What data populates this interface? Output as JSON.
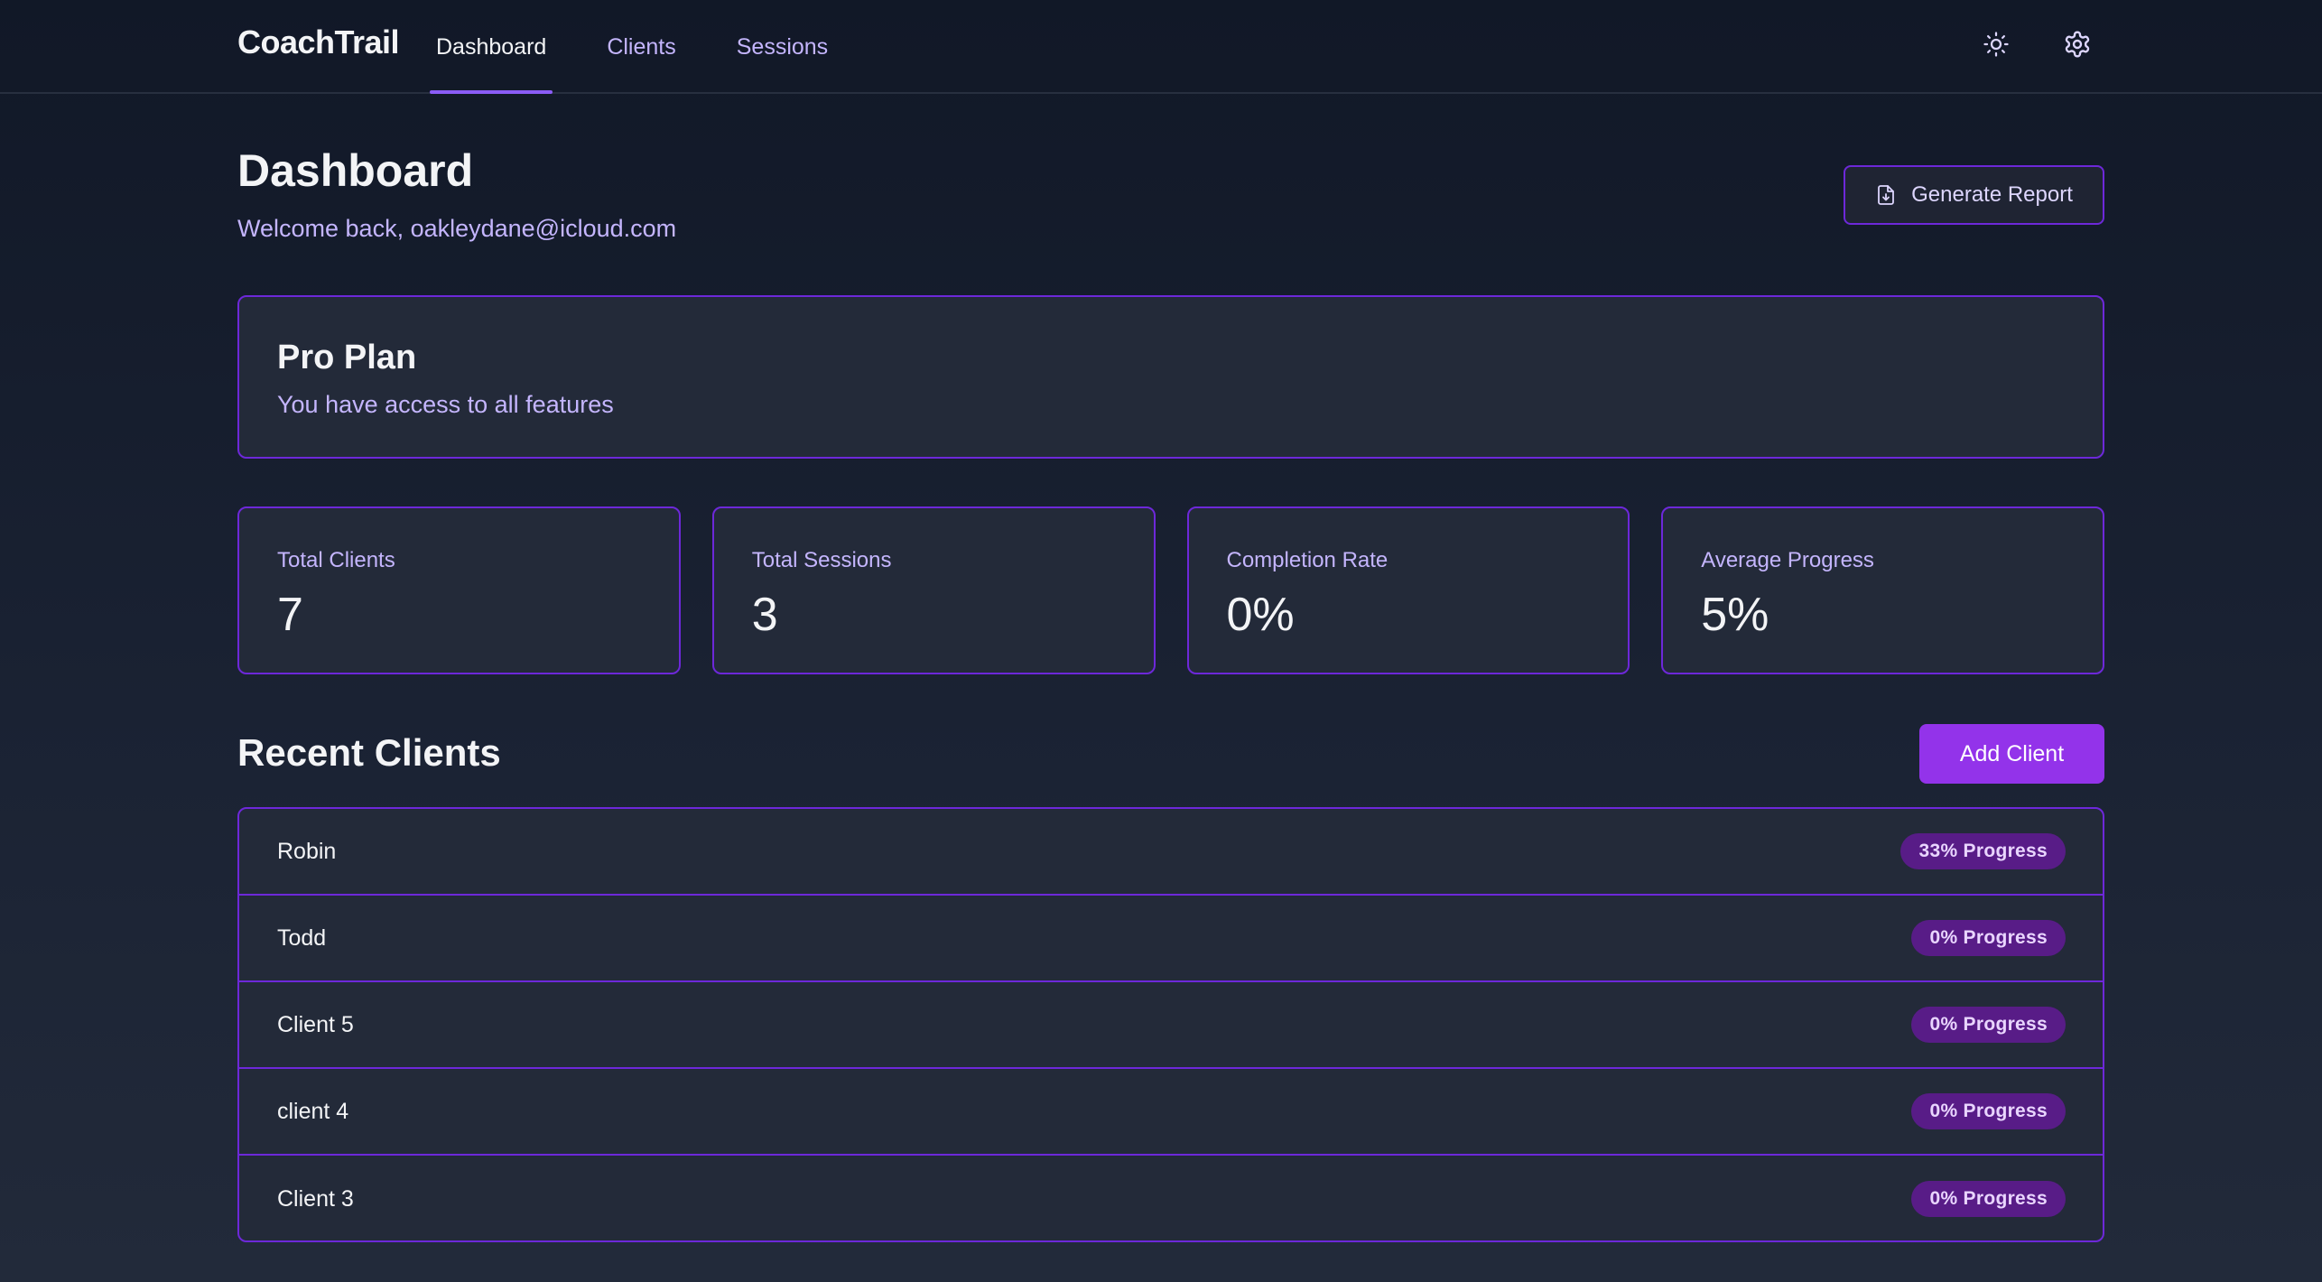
{
  "app": {
    "brand": "CoachTrail"
  },
  "nav": {
    "items": [
      {
        "label": "Dashboard",
        "active": true
      },
      {
        "label": "Clients",
        "active": false
      },
      {
        "label": "Sessions",
        "active": false
      }
    ],
    "icons": {
      "theme": "sun-icon",
      "settings": "gear-icon"
    }
  },
  "header": {
    "title": "Dashboard",
    "welcome": "Welcome back, oakleydane@icloud.com",
    "report_button": "Generate Report",
    "report_icon": "file-download-icon"
  },
  "plan": {
    "title": "Pro Plan",
    "subtitle": "You have access to all features"
  },
  "stats": [
    {
      "label": "Total Clients",
      "value": "7"
    },
    {
      "label": "Total Sessions",
      "value": "3"
    },
    {
      "label": "Completion Rate",
      "value": "0%"
    },
    {
      "label": "Average Progress",
      "value": "5%"
    }
  ],
  "recent_clients": {
    "title": "Recent Clients",
    "add_button": "Add Client",
    "clients": [
      {
        "name": "Robin",
        "progress": "33% Progress"
      },
      {
        "name": "Todd",
        "progress": "0% Progress"
      },
      {
        "name": "Client 5",
        "progress": "0% Progress"
      },
      {
        "name": "client 4",
        "progress": "0% Progress"
      },
      {
        "name": "Client 3",
        "progress": "0% Progress"
      }
    ]
  },
  "colors": {
    "background": "#111827",
    "card": "#232a39",
    "accent": "#9333ea",
    "border": "#6d28d9",
    "muted_text": "#c4b5fd",
    "badge": "#581c87"
  }
}
